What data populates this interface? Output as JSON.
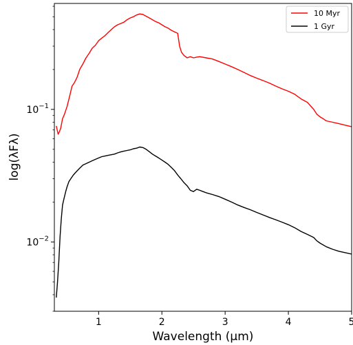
{
  "chart_data": {
    "type": "line",
    "title": "",
    "xlabel": "Wavelength (μm)",
    "ylabel": "log(λFλ)",
    "xlim": [
      0.3,
      5.0
    ],
    "ylim": [
      0.003,
      0.63
    ],
    "yscale": "log",
    "grid": false,
    "legend_position": "top-right",
    "x_ticks": [
      {
        "value": 1,
        "label": "1"
      },
      {
        "value": 2,
        "label": "2"
      },
      {
        "value": 3,
        "label": "3"
      },
      {
        "value": 4,
        "label": "4"
      },
      {
        "value": 5,
        "label": "5"
      }
    ],
    "y_ticks": [
      {
        "value": 0.1,
        "base": "10",
        "exp": "−1"
      },
      {
        "value": 0.01,
        "base": "10",
        "exp": "−2"
      }
    ],
    "series": [
      {
        "name": "10 Myr",
        "color": "#ff0000",
        "x": [
          0.33,
          0.36,
          0.38,
          0.4,
          0.43,
          0.46,
          0.5,
          0.54,
          0.58,
          0.62,
          0.66,
          0.7,
          0.75,
          0.8,
          0.85,
          0.9,
          0.95,
          1.0,
          1.05,
          1.1,
          1.15,
          1.2,
          1.25,
          1.3,
          1.35,
          1.4,
          1.45,
          1.5,
          1.55,
          1.6,
          1.65,
          1.7,
          1.75,
          1.8,
          1.85,
          1.9,
          1.95,
          2.0,
          2.05,
          2.1,
          2.15,
          2.2,
          2.25,
          2.28,
          2.31,
          2.35,
          2.4,
          2.45,
          2.5,
          2.55,
          2.6,
          2.7,
          2.8,
          2.9,
          3.0,
          3.1,
          3.2,
          3.3,
          3.4,
          3.5,
          3.6,
          3.7,
          3.8,
          3.9,
          4.0,
          4.1,
          4.2,
          4.3,
          4.4,
          4.45,
          4.5,
          4.55,
          4.6,
          4.7,
          4.8,
          4.9,
          5.0
        ],
        "y": [
          0.075,
          0.065,
          0.068,
          0.072,
          0.085,
          0.092,
          0.105,
          0.125,
          0.15,
          0.16,
          0.175,
          0.2,
          0.22,
          0.245,
          0.265,
          0.29,
          0.305,
          0.33,
          0.345,
          0.36,
          0.38,
          0.4,
          0.42,
          0.435,
          0.445,
          0.455,
          0.475,
          0.49,
          0.5,
          0.515,
          0.525,
          0.52,
          0.505,
          0.49,
          0.475,
          0.46,
          0.45,
          0.435,
          0.42,
          0.41,
          0.395,
          0.385,
          0.375,
          0.3,
          0.27,
          0.255,
          0.245,
          0.25,
          0.245,
          0.248,
          0.25,
          0.245,
          0.24,
          0.23,
          0.22,
          0.21,
          0.2,
          0.19,
          0.18,
          0.172,
          0.165,
          0.158,
          0.15,
          0.143,
          0.137,
          0.13,
          0.12,
          0.113,
          0.1,
          0.092,
          0.088,
          0.085,
          0.082,
          0.08,
          0.078,
          0.076,
          0.074
        ]
      },
      {
        "name": "1 Gyr",
        "color": "#000000",
        "x": [
          0.33,
          0.35,
          0.37,
          0.39,
          0.41,
          0.43,
          0.45,
          0.48,
          0.5,
          0.53,
          0.56,
          0.6,
          0.65,
          0.7,
          0.75,
          0.8,
          0.85,
          0.9,
          0.95,
          1.0,
          1.05,
          1.1,
          1.15,
          1.2,
          1.25,
          1.3,
          1.35,
          1.4,
          1.45,
          1.5,
          1.55,
          1.6,
          1.65,
          1.7,
          1.75,
          1.8,
          1.85,
          1.9,
          1.95,
          2.0,
          2.05,
          2.1,
          2.15,
          2.2,
          2.25,
          2.3,
          2.35,
          2.4,
          2.45,
          2.5,
          2.55,
          2.6,
          2.65,
          2.7,
          2.8,
          2.9,
          3.0,
          3.1,
          3.2,
          3.3,
          3.4,
          3.5,
          3.6,
          3.7,
          3.8,
          3.9,
          4.0,
          4.1,
          4.2,
          4.3,
          4.4,
          4.45,
          4.5,
          4.6,
          4.7,
          4.8,
          4.9,
          5.0
        ],
        "y": [
          0.0038,
          0.005,
          0.007,
          0.011,
          0.015,
          0.019,
          0.021,
          0.024,
          0.026,
          0.0285,
          0.03,
          0.032,
          0.034,
          0.036,
          0.038,
          0.039,
          0.04,
          0.041,
          0.042,
          0.043,
          0.044,
          0.0445,
          0.045,
          0.0455,
          0.046,
          0.047,
          0.0478,
          0.0485,
          0.049,
          0.0495,
          0.0505,
          0.051,
          0.052,
          0.0515,
          0.05,
          0.048,
          0.046,
          0.0445,
          0.043,
          0.0415,
          0.04,
          0.0385,
          0.0365,
          0.0345,
          0.032,
          0.03,
          0.028,
          0.0265,
          0.0245,
          0.024,
          0.025,
          0.0245,
          0.024,
          0.0235,
          0.0228,
          0.022,
          0.021,
          0.02,
          0.019,
          0.0182,
          0.0175,
          0.0167,
          0.016,
          0.0153,
          0.0147,
          0.0141,
          0.0135,
          0.0128,
          0.012,
          0.0114,
          0.0108,
          0.0102,
          0.0098,
          0.0092,
          0.0088,
          0.0085,
          0.0083,
          0.0081
        ]
      }
    ]
  }
}
